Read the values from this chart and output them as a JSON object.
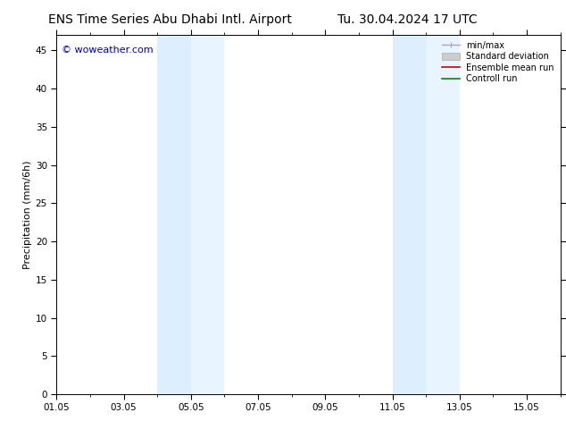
{
  "title_left": "ENS Time Series Abu Dhabi Intl. Airport",
  "title_right": "Tu. 30.04.2024 17 UTC",
  "ylabel": "Precipitation (mm/6h)",
  "watermark": "© woweather.com",
  "watermark_color": "#0000cc",
  "ylim": [
    0,
    47
  ],
  "yticks": [
    0,
    5,
    10,
    15,
    20,
    25,
    30,
    35,
    40,
    45
  ],
  "xlim": [
    0,
    15
  ],
  "xtick_labels": [
    "01.05",
    "03.05",
    "05.05",
    "07.05",
    "09.05",
    "11.05",
    "13.05",
    "15.05"
  ],
  "xtick_positions": [
    0,
    2,
    4,
    6,
    8,
    10,
    12,
    14
  ],
  "shaded_regions": [
    {
      "x_start": 3.0,
      "x_end": 4.0,
      "color": "#ddeeff"
    },
    {
      "x_start": 4.0,
      "x_end": 5.0,
      "color": "#e8f4ff"
    },
    {
      "x_start": 10.0,
      "x_end": 11.0,
      "color": "#ddeeff"
    },
    {
      "x_start": 11.0,
      "x_end": 12.0,
      "color": "#e8f4ff"
    }
  ],
  "bg_color": "#ffffff",
  "plot_bg_color": "#ffffff",
  "legend_items": [
    {
      "label": "min/max",
      "color": "#aaaaaa",
      "lw": 1.0,
      "style": "errorbar"
    },
    {
      "label": "Standard deviation",
      "color": "#cccccc",
      "lw": 5,
      "style": "band"
    },
    {
      "label": "Ensemble mean run",
      "color": "#cc0000",
      "lw": 1.2,
      "style": "line"
    },
    {
      "label": "Controll run",
      "color": "#008800",
      "lw": 1.2,
      "style": "line"
    }
  ],
  "title_fontsize": 10,
  "tick_fontsize": 7.5,
  "ylabel_fontsize": 8,
  "watermark_fontsize": 8,
  "legend_fontsize": 7
}
